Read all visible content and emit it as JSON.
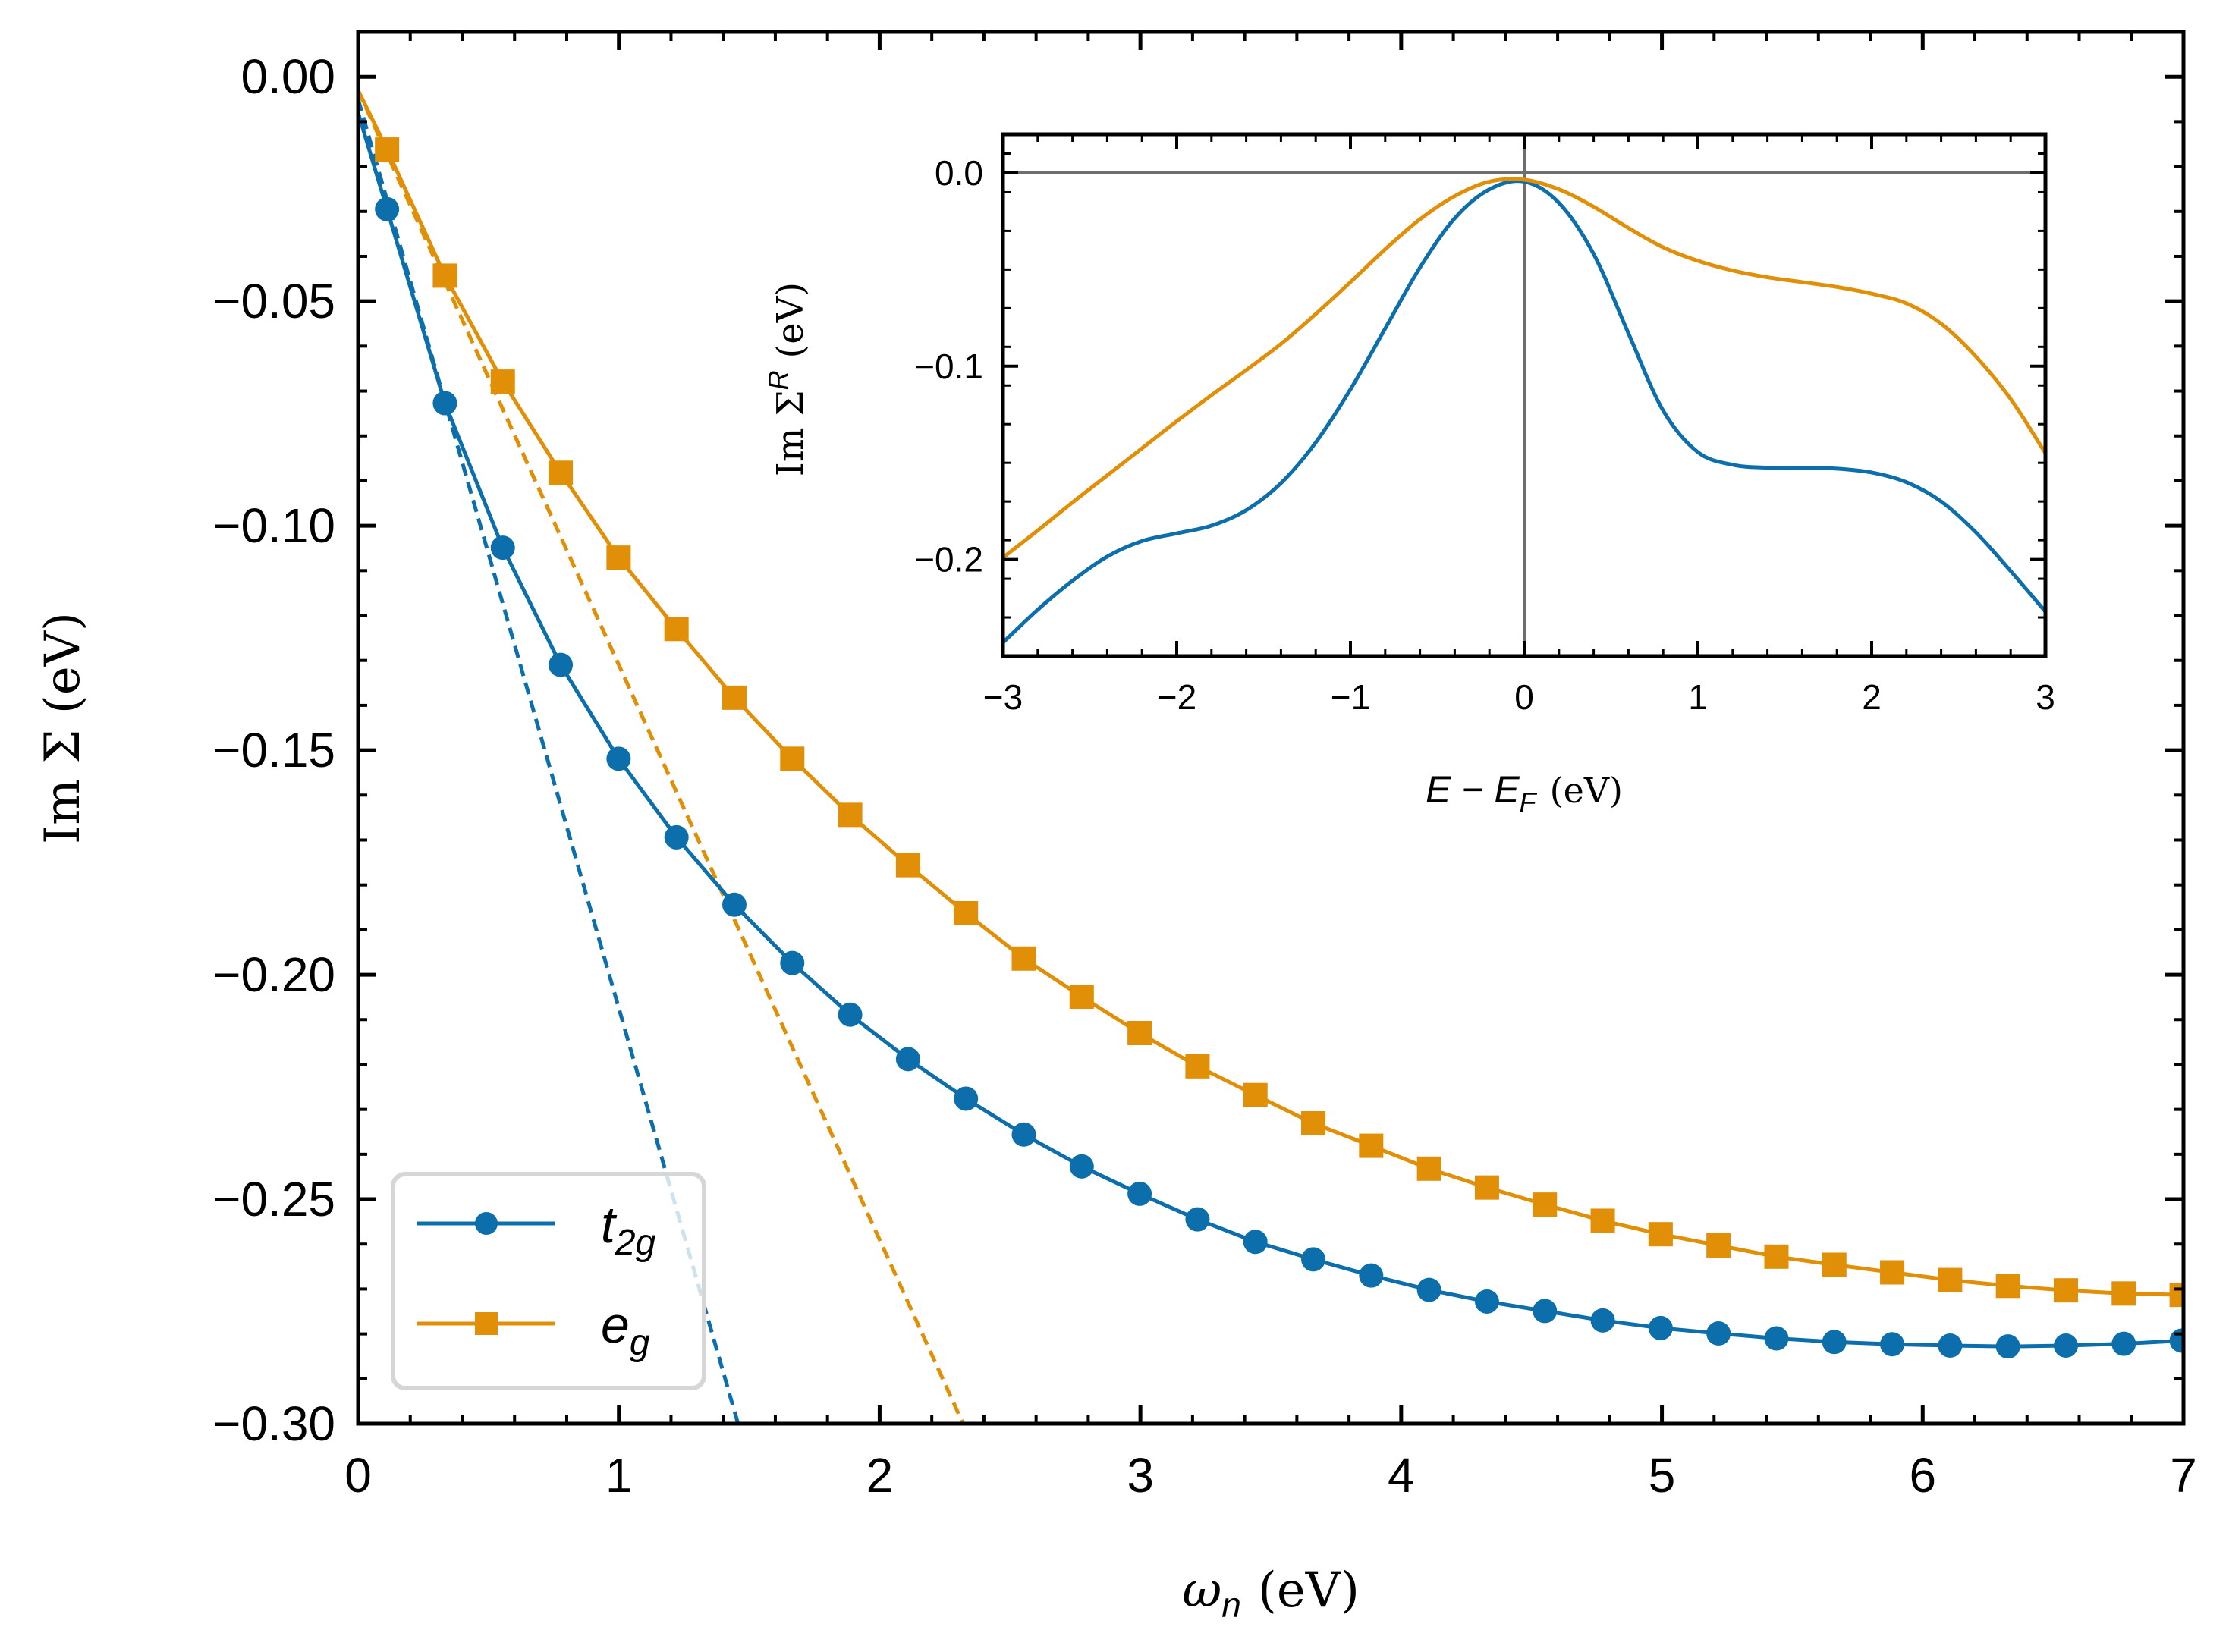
{
  "colors": {
    "t2g": "#0c6fab",
    "eg": "#e08f07",
    "zero_line": "#6e6e6e",
    "axis": "#000000"
  },
  "chart_data": [
    {
      "type": "line",
      "panel": "main",
      "xlabel": {
        "symbol": "ω",
        "sub": "n",
        "unit": "(eV)"
      },
      "ylabel": "Im Σ (eV)",
      "xlim": [
        0,
        7
      ],
      "ylim": [
        -0.3,
        0.01
      ],
      "xticks": [
        0,
        1,
        2,
        3,
        4,
        5,
        6,
        7
      ],
      "xtick_labels": [
        "0",
        "1",
        "2",
        "3",
        "4",
        "5",
        "6",
        "7"
      ],
      "yticks": [
        0.0,
        -0.05,
        -0.1,
        -0.15,
        -0.2,
        -0.25,
        -0.3
      ],
      "ytick_labels": [
        "0.00",
        "−0.05",
        "−0.10",
        "−0.15",
        "−0.20",
        "−0.25",
        "−0.30"
      ],
      "legend": {
        "position": "bottom-left",
        "entries": [
          {
            "base": "t",
            "sub": "2g",
            "series": "t2g",
            "marker": "circle"
          },
          {
            "base": "e",
            "sub": "g",
            "series": "eg",
            "marker": "square"
          }
        ]
      },
      "series": [
        {
          "name": "t2g",
          "marker": "circle",
          "x": [
            0.111,
            0.333,
            0.555,
            0.777,
            0.999,
            1.221,
            1.443,
            1.665,
            1.887,
            2.109,
            2.331,
            2.553,
            2.775,
            2.997,
            3.219,
            3.441,
            3.663,
            3.885,
            4.107,
            4.329,
            4.551,
            4.773,
            4.995,
            5.217,
            5.439,
            5.661,
            5.883,
            6.105,
            6.327,
            6.549,
            6.771,
            6.993
          ],
          "y": [
            -0.0295,
            -0.0727,
            -0.1049,
            -0.131,
            -0.1519,
            -0.1694,
            -0.1844,
            -0.1974,
            -0.2089,
            -0.2188,
            -0.2276,
            -0.2356,
            -0.2427,
            -0.2488,
            -0.2545,
            -0.2595,
            -0.2634,
            -0.267,
            -0.2702,
            -0.2728,
            -0.2749,
            -0.277,
            -0.2787,
            -0.2799,
            -0.281,
            -0.2818,
            -0.2823,
            -0.2826,
            -0.2828,
            -0.2826,
            -0.2822,
            -0.2815
          ]
        },
        {
          "name": "eg",
          "marker": "square",
          "x": [
            0.111,
            0.333,
            0.555,
            0.777,
            0.999,
            1.221,
            1.443,
            1.665,
            1.887,
            2.109,
            2.331,
            2.553,
            2.775,
            2.997,
            3.219,
            3.441,
            3.663,
            3.885,
            4.107,
            4.329,
            4.551,
            4.773,
            4.995,
            5.217,
            5.439,
            5.661,
            5.883,
            6.105,
            6.327,
            6.549,
            6.771,
            6.993
          ],
          "y": [
            -0.0162,
            -0.0443,
            -0.0679,
            -0.0882,
            -0.1071,
            -0.123,
            -0.1383,
            -0.1519,
            -0.1644,
            -0.1756,
            -0.1863,
            -0.1964,
            -0.2049,
            -0.213,
            -0.2204,
            -0.2268,
            -0.2331,
            -0.2381,
            -0.2432,
            -0.2474,
            -0.2512,
            -0.2548,
            -0.2578,
            -0.2603,
            -0.2628,
            -0.2646,
            -0.2663,
            -0.268,
            -0.2693,
            -0.2703,
            -0.271,
            -0.2713
          ]
        }
      ],
      "fits": [
        {
          "name": "t2g linear extrapolation",
          "style": "dashed",
          "x": [
            0.0,
            1.457
          ],
          "y": [
            -0.005,
            -0.3
          ]
        },
        {
          "name": "eg linear extrapolation",
          "style": "dashed",
          "x": [
            0.0,
            2.32
          ],
          "y": [
            -0.003,
            -0.3
          ]
        }
      ]
    },
    {
      "type": "line",
      "panel": "inset",
      "xlabel": {
        "text": "E − E",
        "sub": "F",
        "unit": "(eV)"
      },
      "ylabel": {
        "text": "Im Σ",
        "sup": "R",
        "unit": "(eV)"
      },
      "xlim": [
        -3,
        3
      ],
      "ylim": [
        -0.25,
        0.02
      ],
      "xticks": [
        -3,
        -2,
        -1,
        0,
        1,
        2,
        3
      ],
      "xtick_labels": [
        "−3",
        "−2",
        "−1",
        "0",
        "1",
        "2",
        "3"
      ],
      "yticks": [
        0.0,
        -0.1,
        -0.2
      ],
      "ytick_labels": [
        "0.0",
        "−0.1",
        "−0.2"
      ],
      "reference_lines": [
        {
          "axis": "y",
          "value": 0
        },
        {
          "axis": "x",
          "value": 0
        }
      ],
      "series": [
        {
          "name": "t2g",
          "x": [
            -3.0,
            -2.8,
            -2.6,
            -2.4,
            -2.2,
            -2.0,
            -1.8,
            -1.6,
            -1.4,
            -1.2,
            -1.0,
            -0.8,
            -0.6,
            -0.4,
            -0.2,
            0.0,
            0.2,
            0.4,
            0.6,
            0.8,
            1.0,
            1.2,
            1.4,
            1.6,
            1.8,
            2.0,
            2.2,
            2.4,
            2.6,
            2.8,
            3.0
          ],
          "y": [
            -0.243,
            -0.226,
            -0.211,
            -0.1985,
            -0.1905,
            -0.1865,
            -0.1825,
            -0.1745,
            -0.1605,
            -0.1395,
            -0.112,
            -0.0805,
            -0.049,
            -0.0235,
            -0.0085,
            -0.0045,
            -0.0155,
            -0.042,
            -0.083,
            -0.123,
            -0.1445,
            -0.151,
            -0.1525,
            -0.1525,
            -0.153,
            -0.155,
            -0.16,
            -0.17,
            -0.186,
            -0.206,
            -0.227
          ]
        },
        {
          "name": "eg",
          "x": [
            -3.0,
            -2.8,
            -2.6,
            -2.4,
            -2.2,
            -2.0,
            -1.8,
            -1.6,
            -1.4,
            -1.2,
            -1.0,
            -0.8,
            -0.6,
            -0.4,
            -0.2,
            0.0,
            0.2,
            0.4,
            0.6,
            0.8,
            1.0,
            1.2,
            1.4,
            1.6,
            1.8,
            2.0,
            2.2,
            2.4,
            2.6,
            2.8,
            3.0
          ],
          "y": [
            -0.199,
            -0.185,
            -0.1705,
            -0.1565,
            -0.1425,
            -0.1285,
            -0.115,
            -0.102,
            -0.0885,
            -0.073,
            -0.0565,
            -0.0395,
            -0.024,
            -0.012,
            -0.0045,
            -0.0035,
            -0.0085,
            -0.0175,
            -0.0285,
            -0.0385,
            -0.0455,
            -0.0505,
            -0.054,
            -0.0565,
            -0.059,
            -0.0625,
            -0.0675,
            -0.078,
            -0.095,
            -0.117,
            -0.145
          ]
        }
      ]
    }
  ]
}
